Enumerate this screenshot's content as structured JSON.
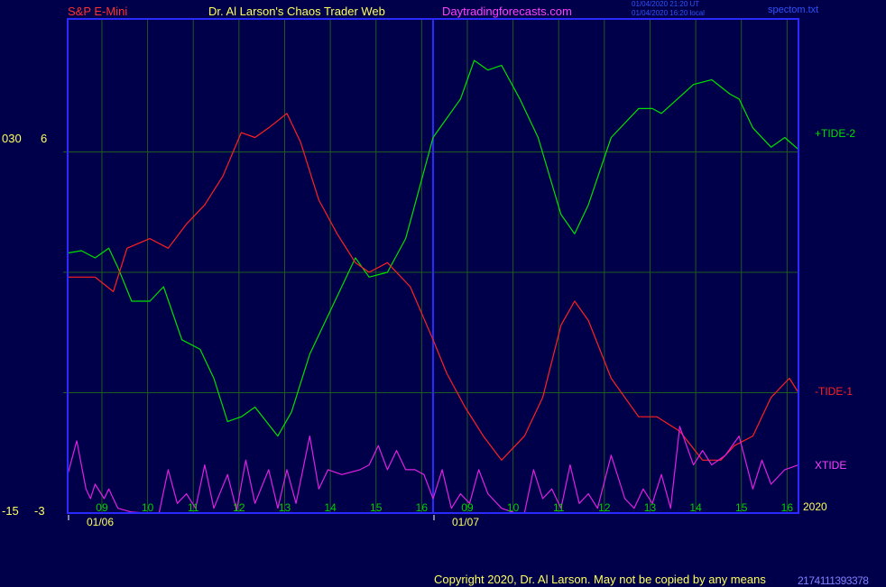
{
  "header": {
    "instrument": "S&P E-Mini",
    "author": "Dr. Al Larson's Chaos Trader Web",
    "site": "Daytradingforecasts.com",
    "timestamp_ut": "01/04/2020 21:20 UT",
    "timestamp_local": "01/04/2020 16:20 local",
    "file": "spectom.txt"
  },
  "left_scale": {
    "top_values": [
      "030",
      "6"
    ],
    "bottom_values": [
      "-15",
      "-3"
    ]
  },
  "footer": {
    "copyright": "Copyright 2020, Dr. Al Larson. May not be copied by any means",
    "overlap_text": "2174111393378"
  },
  "colors": {
    "background": "#00004a",
    "frame": "#2a2aff",
    "grid": "#1f5a1f",
    "tide2": "#00e000",
    "tide1": "#ff2020",
    "xtide": "#e020e0",
    "hour_labels": "#00d000",
    "header_red": "#ff3030",
    "header_yellow": "#ffff60",
    "header_magenta": "#ff40ff"
  },
  "chart_data": {
    "type": "line",
    "x_unit": "hour index (0 = 08:15 on 01/06)",
    "xlim": [
      0,
      16
    ],
    "ylim": [
      0,
      100
    ],
    "y_grid": [
      25,
      50,
      75
    ],
    "x_ticks": [
      {
        "x": 0.75,
        "label": "09"
      },
      {
        "x": 1.75,
        "label": "10"
      },
      {
        "x": 2.75,
        "label": "11"
      },
      {
        "x": 3.75,
        "label": "12"
      },
      {
        "x": 4.75,
        "label": "13"
      },
      {
        "x": 5.75,
        "label": "14"
      },
      {
        "x": 6.75,
        "label": "15"
      },
      {
        "x": 7.75,
        "label": "16"
      },
      {
        "x": 8.75,
        "label": "09"
      },
      {
        "x": 9.75,
        "label": "10"
      },
      {
        "x": 10.75,
        "label": "11"
      },
      {
        "x": 11.75,
        "label": "12"
      },
      {
        "x": 12.75,
        "label": "13"
      },
      {
        "x": 13.75,
        "label": "14"
      },
      {
        "x": 14.75,
        "label": "15"
      },
      {
        "x": 15.75,
        "label": "16"
      }
    ],
    "date_labels": [
      {
        "x": 0,
        "label": "01/06"
      },
      {
        "x": 8,
        "label": "01/07"
      }
    ],
    "year_label": "2020",
    "series": [
      {
        "name": "+TIDE-2",
        "points": [
          [
            0,
            54
          ],
          [
            0.3,
            54.5
          ],
          [
            0.6,
            53
          ],
          [
            0.9,
            55
          ],
          [
            1.1,
            51
          ],
          [
            1.4,
            44
          ],
          [
            1.8,
            44
          ],
          [
            2.1,
            47
          ],
          [
            2.5,
            36
          ],
          [
            2.9,
            34
          ],
          [
            3.2,
            28
          ],
          [
            3.5,
            19
          ],
          [
            3.8,
            20
          ],
          [
            4.1,
            22
          ],
          [
            4.6,
            16
          ],
          [
            4.9,
            21
          ],
          [
            5.3,
            33
          ],
          [
            5.8,
            43
          ],
          [
            6.3,
            53
          ],
          [
            6.6,
            49
          ],
          [
            7.0,
            50
          ],
          [
            7.4,
            57
          ],
          [
            7.6,
            64
          ],
          [
            8.0,
            78
          ],
          [
            8.3,
            82
          ],
          [
            8.6,
            86
          ],
          [
            8.9,
            94
          ],
          [
            9.2,
            92
          ],
          [
            9.5,
            93
          ],
          [
            9.9,
            86
          ],
          [
            10.3,
            78
          ],
          [
            10.8,
            62
          ],
          [
            11.1,
            58
          ],
          [
            11.4,
            64
          ],
          [
            11.9,
            78
          ],
          [
            12.5,
            84
          ],
          [
            12.8,
            84
          ],
          [
            13.0,
            83
          ],
          [
            13.7,
            89
          ],
          [
            14.1,
            90
          ],
          [
            14.5,
            87
          ],
          [
            14.7,
            86
          ],
          [
            15.0,
            80
          ],
          [
            15.4,
            76
          ],
          [
            15.7,
            78
          ],
          [
            16.0,
            75.5
          ]
        ]
      },
      {
        "name": "-TIDE-1",
        "points": [
          [
            0,
            49
          ],
          [
            0.3,
            49
          ],
          [
            0.6,
            49
          ],
          [
            1.0,
            46
          ],
          [
            1.3,
            55
          ],
          [
            1.8,
            57
          ],
          [
            2.2,
            55
          ],
          [
            2.6,
            60
          ],
          [
            3.0,
            64
          ],
          [
            3.4,
            70
          ],
          [
            3.8,
            79
          ],
          [
            4.1,
            78
          ],
          [
            4.4,
            80
          ],
          [
            4.8,
            83
          ],
          [
            5.1,
            77
          ],
          [
            5.5,
            65
          ],
          [
            5.9,
            58
          ],
          [
            6.3,
            52
          ],
          [
            6.6,
            50
          ],
          [
            7.0,
            52
          ],
          [
            7.5,
            47
          ],
          [
            8.0,
            36
          ],
          [
            8.3,
            29
          ],
          [
            8.7,
            22
          ],
          [
            9.1,
            16
          ],
          [
            9.5,
            11
          ],
          [
            10.0,
            16
          ],
          [
            10.4,
            24
          ],
          [
            10.8,
            39
          ],
          [
            11.1,
            44
          ],
          [
            11.4,
            40
          ],
          [
            11.9,
            28
          ],
          [
            12.5,
            20
          ],
          [
            12.9,
            20
          ],
          [
            13.4,
            17
          ],
          [
            13.9,
            11
          ],
          [
            14.3,
            11
          ],
          [
            14.6,
            14
          ],
          [
            15.0,
            16
          ],
          [
            15.4,
            24
          ],
          [
            15.8,
            28
          ],
          [
            16.0,
            25
          ]
        ]
      },
      {
        "name": "XTIDE",
        "points": [
          [
            0,
            8
          ],
          [
            0.2,
            15
          ],
          [
            0.4,
            5
          ],
          [
            0.5,
            3
          ],
          [
            0.6,
            6
          ],
          [
            0.8,
            3
          ],
          [
            0.9,
            5
          ],
          [
            1.0,
            3
          ],
          [
            1.1,
            1
          ],
          [
            1.4,
            0.2
          ],
          [
            1.7,
            0
          ],
          [
            2.0,
            0
          ],
          [
            2.2,
            9
          ],
          [
            2.4,
            2
          ],
          [
            2.6,
            4
          ],
          [
            2.8,
            1
          ],
          [
            3.0,
            10
          ],
          [
            3.2,
            1
          ],
          [
            3.5,
            8
          ],
          [
            3.7,
            0.5
          ],
          [
            3.9,
            11
          ],
          [
            4.1,
            2
          ],
          [
            4.4,
            9
          ],
          [
            4.6,
            1
          ],
          [
            4.8,
            9
          ],
          [
            5.0,
            2
          ],
          [
            5.3,
            16
          ],
          [
            5.5,
            5
          ],
          [
            5.7,
            9
          ],
          [
            6.0,
            8
          ],
          [
            6.4,
            9
          ],
          [
            6.6,
            10
          ],
          [
            6.8,
            14
          ],
          [
            7.0,
            9
          ],
          [
            7.2,
            13
          ],
          [
            7.4,
            9
          ],
          [
            7.6,
            9
          ],
          [
            7.8,
            8
          ],
          [
            8.0,
            3
          ],
          [
            8.2,
            9
          ],
          [
            8.4,
            1
          ],
          [
            8.6,
            4
          ],
          [
            8.8,
            2
          ],
          [
            9.0,
            9
          ],
          [
            9.2,
            4
          ],
          [
            9.5,
            1
          ],
          [
            9.8,
            0
          ],
          [
            10.0,
            0
          ],
          [
            10.2,
            9
          ],
          [
            10.4,
            3
          ],
          [
            10.6,
            5
          ],
          [
            10.8,
            1
          ],
          [
            11.0,
            10
          ],
          [
            11.2,
            2
          ],
          [
            11.4,
            4
          ],
          [
            11.6,
            1
          ],
          [
            11.9,
            12
          ],
          [
            12.2,
            3
          ],
          [
            12.4,
            1
          ],
          [
            12.6,
            5
          ],
          [
            12.8,
            2
          ],
          [
            13.0,
            8
          ],
          [
            13.2,
            1
          ],
          [
            13.4,
            18
          ],
          [
            13.7,
            10
          ],
          [
            13.9,
            13
          ],
          [
            14.1,
            10
          ],
          [
            14.4,
            12
          ],
          [
            14.7,
            16
          ],
          [
            15.0,
            5
          ],
          [
            15.2,
            11
          ],
          [
            15.4,
            6
          ],
          [
            15.7,
            9
          ],
          [
            16.0,
            10
          ]
        ]
      }
    ]
  }
}
